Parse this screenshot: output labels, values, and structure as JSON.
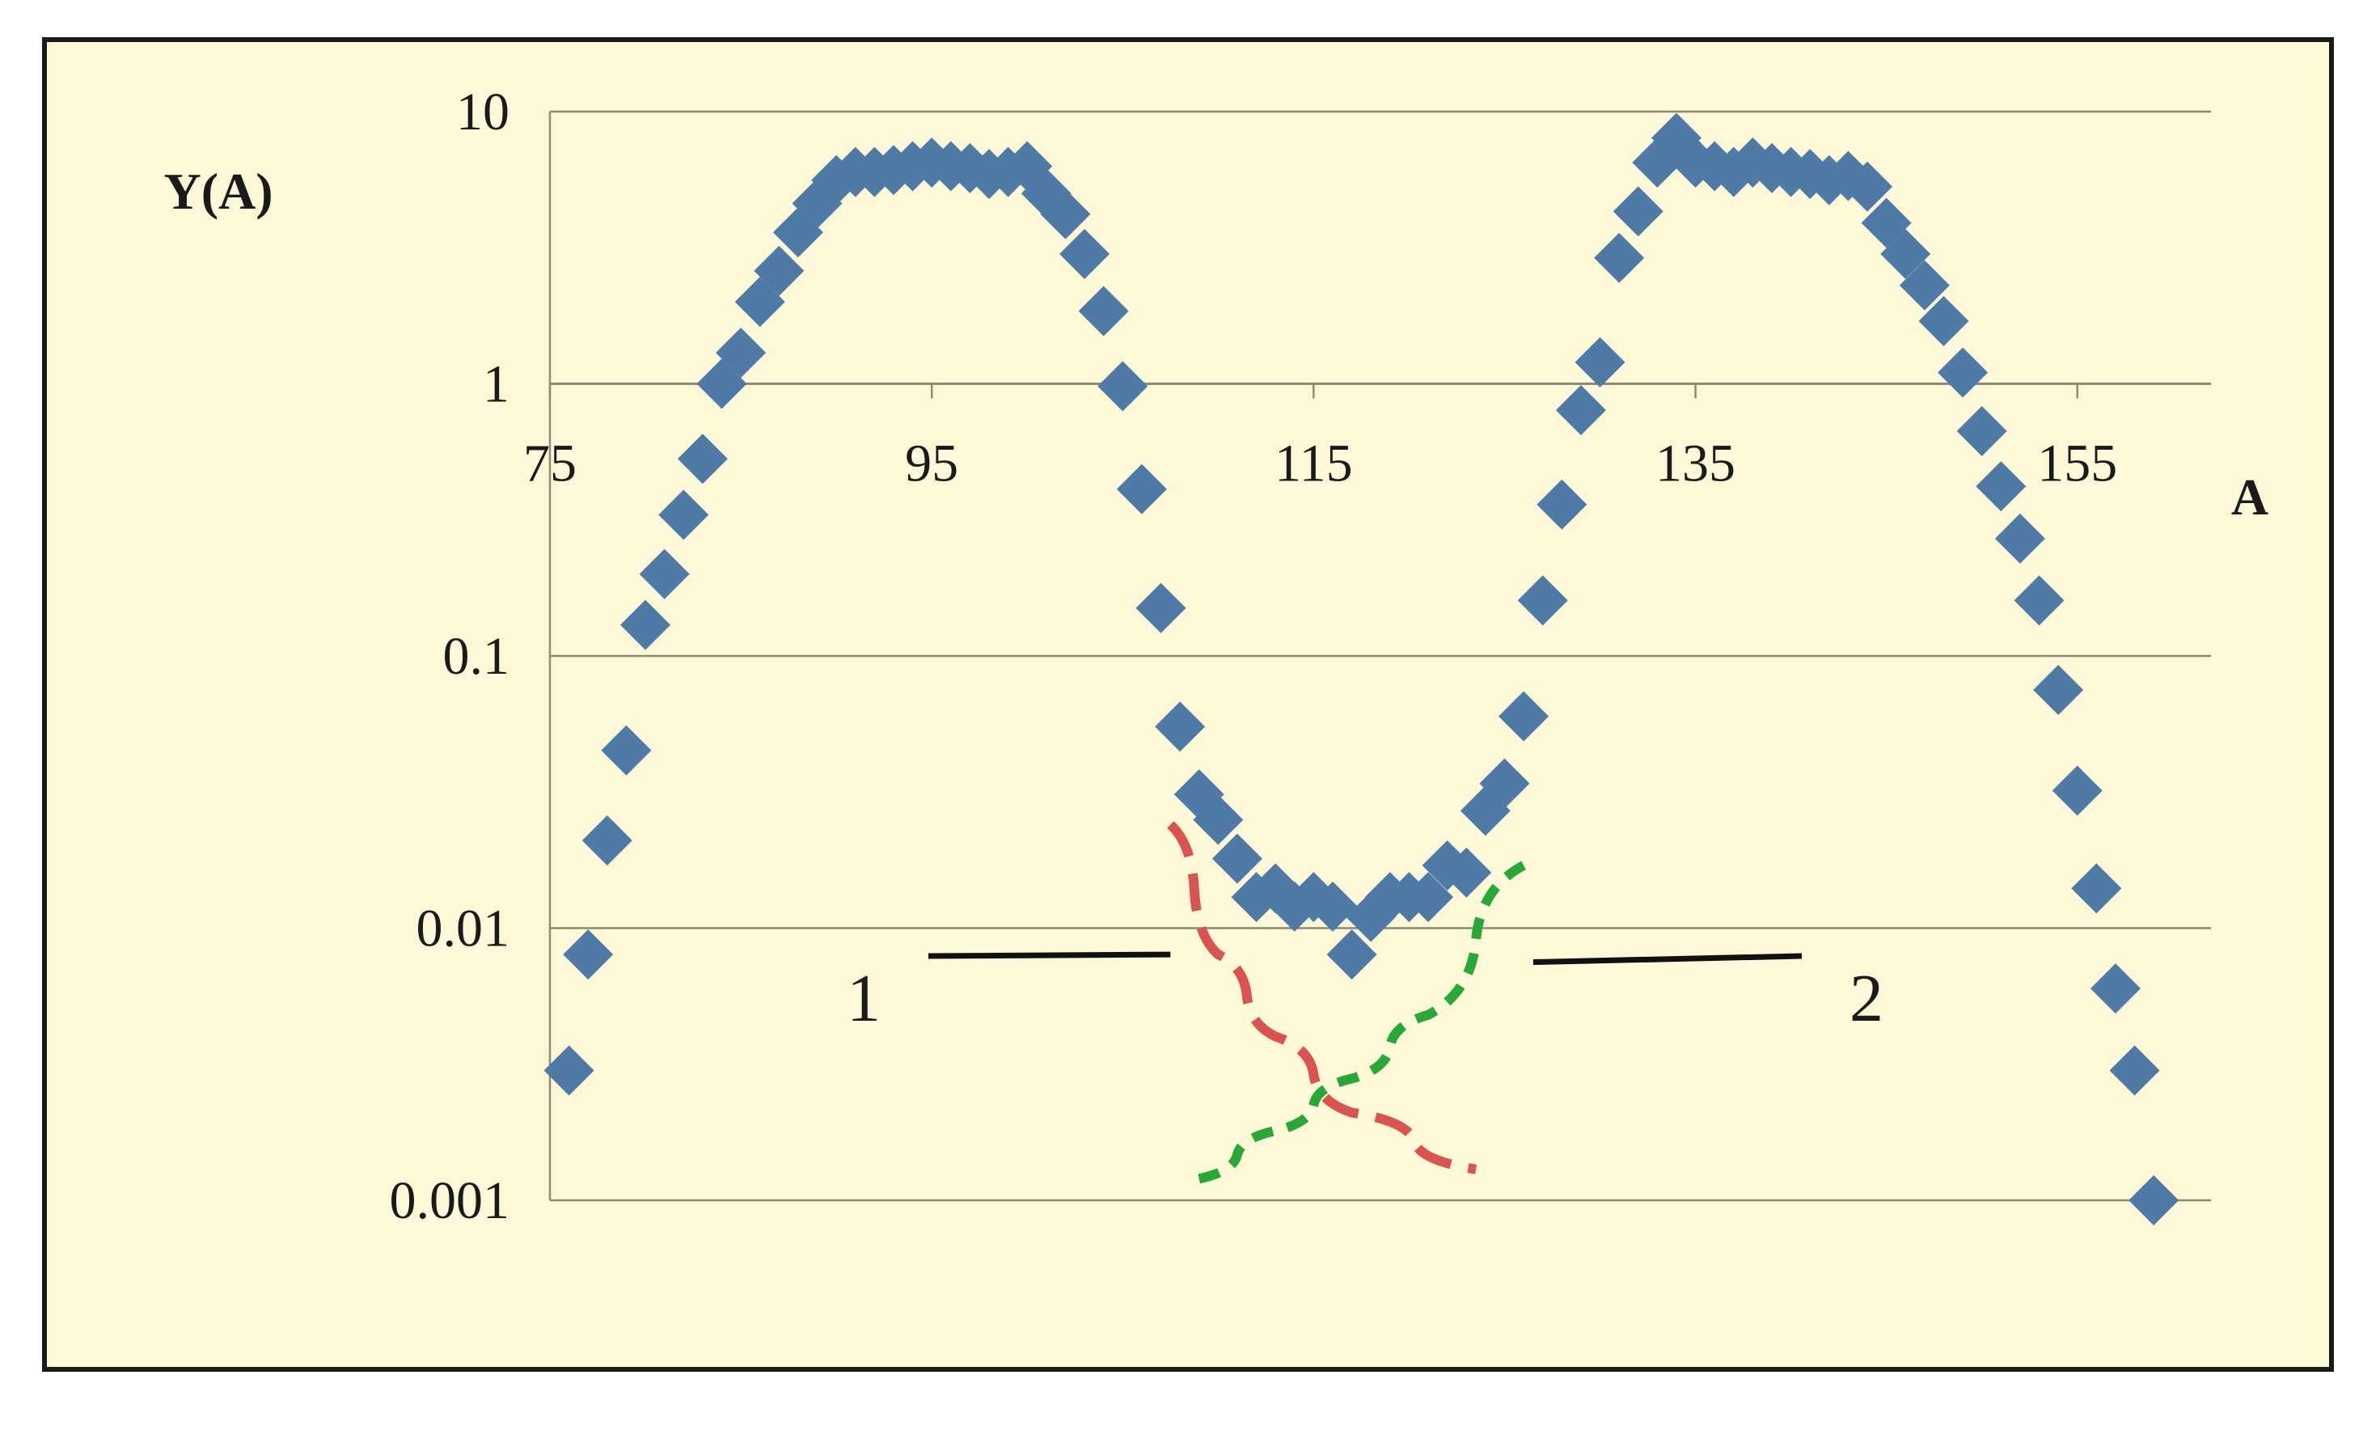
{
  "chart_data": {
    "type": "scatter",
    "xlabel": "A",
    "ylabel": "Y(A)",
    "y_scale": "log",
    "xlim": [
      75,
      162
    ],
    "ylim": [
      0.001,
      10
    ],
    "x_ticks": [
      75,
      95,
      115,
      135,
      155
    ],
    "x_tick_labels": [
      "75",
      "95",
      "115",
      "135",
      "155"
    ],
    "y_ticks": [
      10,
      1,
      0.1,
      0.01,
      0.001
    ],
    "y_tick_labels": [
      "10",
      "1",
      "0.1",
      "0.01",
      "0.001"
    ],
    "x_axis_crosses_at_y": 1,
    "grid": "horizontal",
    "background_color": "#fdf8d8",
    "series": [
      {
        "marker": "diamond",
        "color": "#4f7aa6",
        "points": [
          [
            76,
            0.003
          ],
          [
            77,
            0.008
          ],
          [
            78,
            0.021
          ],
          [
            79,
            0.045
          ],
          [
            80,
            0.13
          ],
          [
            81,
            0.2
          ],
          [
            82,
            0.33
          ],
          [
            83,
            0.53
          ],
          [
            84,
            1.0
          ],
          [
            85,
            1.3
          ],
          [
            86,
            2.0
          ],
          [
            87,
            2.6
          ],
          [
            88,
            3.6
          ],
          [
            89,
            4.6
          ],
          [
            90,
            5.6
          ],
          [
            91,
            6.0
          ],
          [
            92,
            6.0
          ],
          [
            93,
            6.1
          ],
          [
            94,
            6.3
          ],
          [
            95,
            6.5
          ],
          [
            96,
            6.3
          ],
          [
            97,
            6.2
          ],
          [
            98,
            5.9
          ],
          [
            99,
            6.0
          ],
          [
            100,
            6.3
          ],
          [
            101,
            5.0
          ],
          [
            102,
            4.2
          ],
          [
            103,
            3.0
          ],
          [
            104,
            1.85
          ],
          [
            105,
            0.98
          ],
          [
            106,
            0.41
          ],
          [
            107,
            0.15
          ],
          [
            108,
            0.055
          ],
          [
            109,
            0.031
          ],
          [
            110,
            0.025
          ],
          [
            111,
            0.018
          ],
          [
            112,
            0.013
          ],
          [
            113,
            0.014
          ],
          [
            114,
            0.012
          ],
          [
            115,
            0.013
          ],
          [
            116,
            0.012
          ],
          [
            117,
            0.008
          ],
          [
            118,
            0.011
          ],
          [
            119,
            0.013
          ],
          [
            120,
            0.013
          ],
          [
            121,
            0.013
          ],
          [
            122,
            0.017
          ],
          [
            123,
            0.016
          ],
          [
            124,
            0.027
          ],
          [
            125,
            0.034
          ],
          [
            126,
            0.06
          ],
          [
            127,
            0.16
          ],
          [
            128,
            0.36
          ],
          [
            129,
            0.8
          ],
          [
            130,
            1.2
          ],
          [
            131,
            2.9
          ],
          [
            132,
            4.3
          ],
          [
            133,
            6.5
          ],
          [
            134,
            8.0
          ],
          [
            135,
            6.5
          ],
          [
            136,
            6.3
          ],
          [
            137,
            6.0
          ],
          [
            138,
            6.5
          ],
          [
            139,
            6.2
          ],
          [
            140,
            6.0
          ],
          [
            141,
            5.9
          ],
          [
            142,
            5.6
          ],
          [
            143,
            5.8
          ],
          [
            144,
            5.3
          ],
          [
            145,
            3.9
          ],
          [
            146,
            3.0
          ],
          [
            147,
            2.3
          ],
          [
            148,
            1.7
          ],
          [
            149,
            1.1
          ],
          [
            150,
            0.67
          ],
          [
            151,
            0.42
          ],
          [
            152,
            0.27
          ],
          [
            153,
            0.16
          ],
          [
            154,
            0.075
          ],
          [
            155,
            0.032
          ],
          [
            156,
            0.014
          ],
          [
            157,
            0.006
          ],
          [
            158,
            0.003
          ],
          [
            159,
            0.001
          ]
        ]
      }
    ],
    "fit_curves": [
      {
        "label": "1",
        "color": "#d9534f",
        "style": "long-dash",
        "points": [
          [
            107.5,
            0.024
          ],
          [
            110,
            0.008
          ],
          [
            113,
            0.004
          ],
          [
            117,
            0.0021
          ],
          [
            123.5,
            0.0013
          ]
        ]
      },
      {
        "label": "2",
        "color": "#2aa837",
        "style": "short-dash",
        "points": [
          [
            109,
            0.0012
          ],
          [
            113,
            0.0018
          ],
          [
            117,
            0.0028
          ],
          [
            121,
            0.0048
          ],
          [
            126,
            0.017
          ]
        ]
      }
    ],
    "callouts": [
      {
        "label": "1",
        "target": [
          107.5,
          0.008
        ]
      },
      {
        "label": "2",
        "target": [
          126.5,
          0.0075
        ]
      }
    ]
  }
}
